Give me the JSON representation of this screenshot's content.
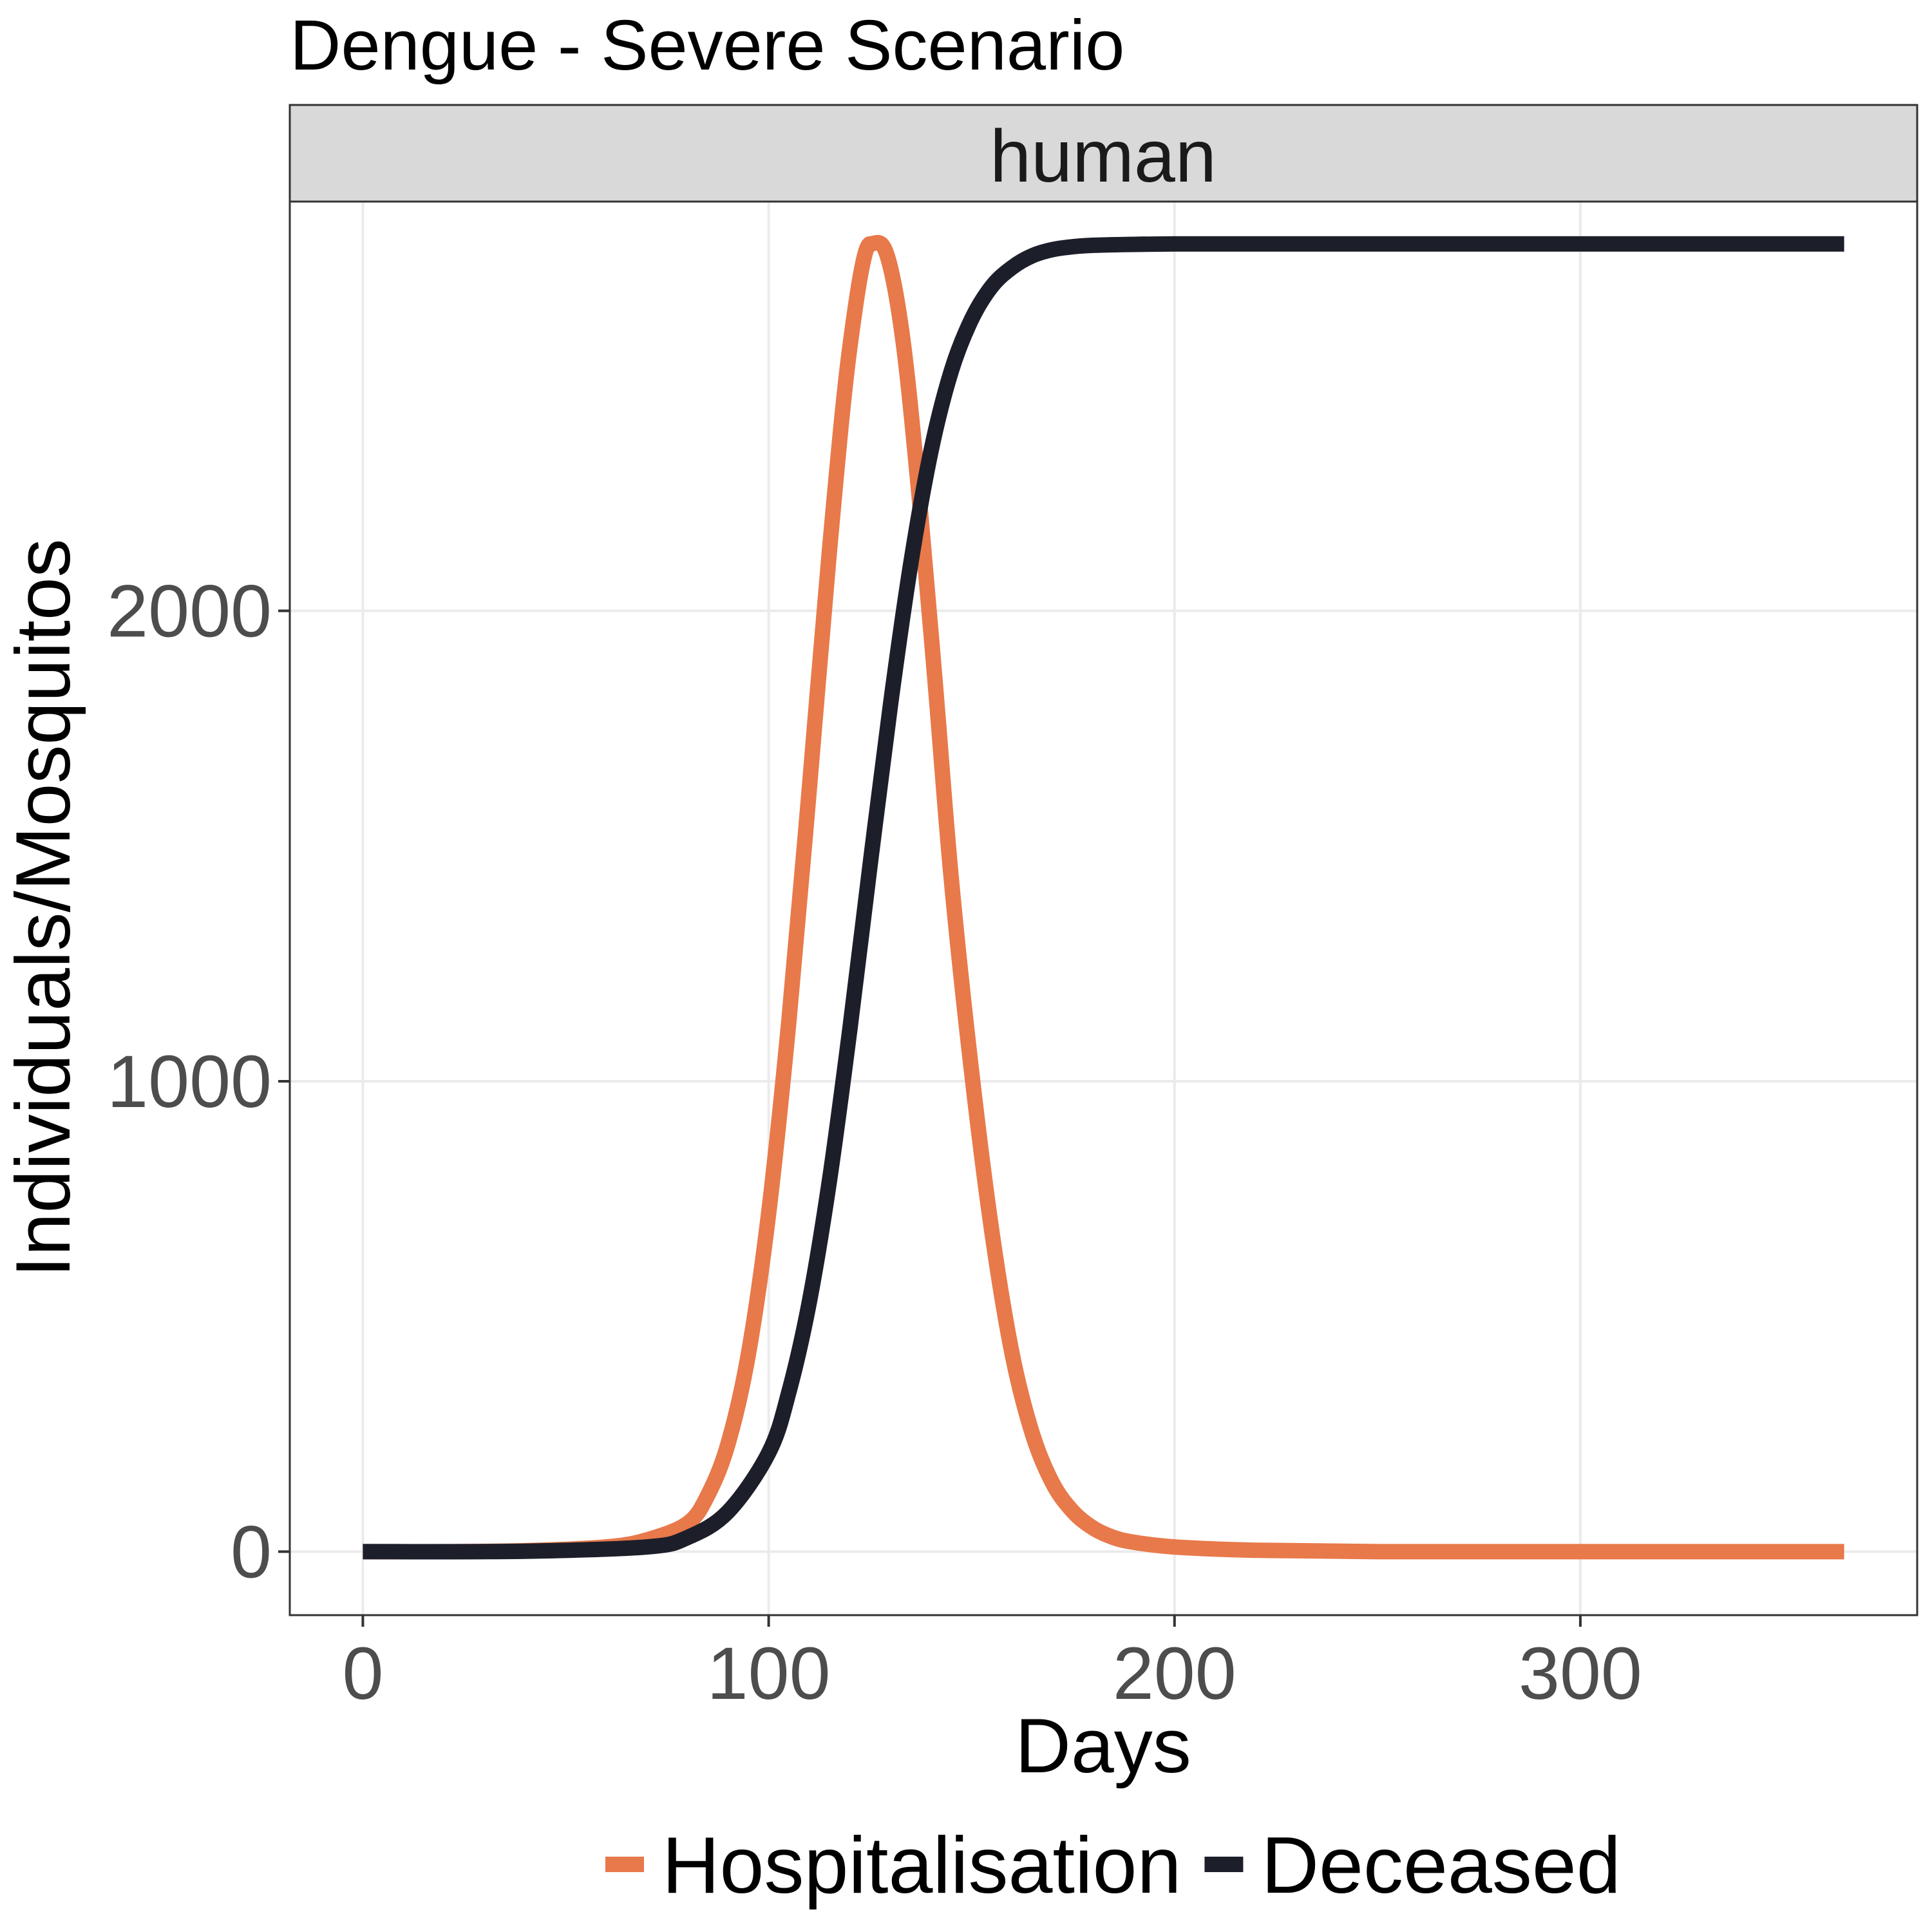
{
  "chart_data": {
    "type": "line",
    "title": "Dengue - Severe Scenario",
    "facet_label": "human",
    "xlabel": "Days",
    "ylabel": "Individuals/Mosquitos",
    "xlim": [
      -18,
      383
    ],
    "ylim": [
      -135,
      2870
    ],
    "x_ticks": [
      0,
      100,
      200,
      300
    ],
    "y_ticks": [
      0,
      1000,
      2000
    ],
    "grid": true,
    "legend_position": "bottom",
    "series": [
      {
        "name": "Hospitalisation",
        "color": "#e8794a",
        "x": [
          0,
          20,
          40,
          60,
          70,
          80,
          85,
          90,
          95,
          100,
          105,
          110,
          115,
          120,
          125,
          129,
          133,
          137,
          141,
          145,
          150,
          155,
          160,
          165,
          170,
          175,
          180,
          185,
          190,
          200,
          220,
          250,
          300,
          365
        ],
        "y": [
          0,
          0,
          2,
          10,
          25,
          60,
          120,
          230,
          420,
          720,
          1130,
          1620,
          2130,
          2560,
          2780,
          2760,
          2580,
          2250,
          1850,
          1430,
          1020,
          680,
          420,
          250,
          145,
          85,
          50,
          30,
          20,
          10,
          3,
          0,
          0,
          0
        ]
      },
      {
        "name": "Deceased",
        "color": "#1c1f2a",
        "x": [
          0,
          40,
          70,
          80,
          90,
          100,
          105,
          110,
          115,
          120,
          125,
          130,
          135,
          140,
          145,
          150,
          155,
          160,
          165,
          170,
          175,
          180,
          190,
          200,
          220,
          250,
          300,
          365
        ],
        "y": [
          0,
          1,
          10,
          30,
          85,
          210,
          340,
          530,
          790,
          1110,
          1460,
          1800,
          2100,
          2340,
          2510,
          2620,
          2690,
          2730,
          2755,
          2768,
          2774,
          2777,
          2779,
          2780,
          2780,
          2780,
          2780,
          2780
        ]
      }
    ]
  }
}
